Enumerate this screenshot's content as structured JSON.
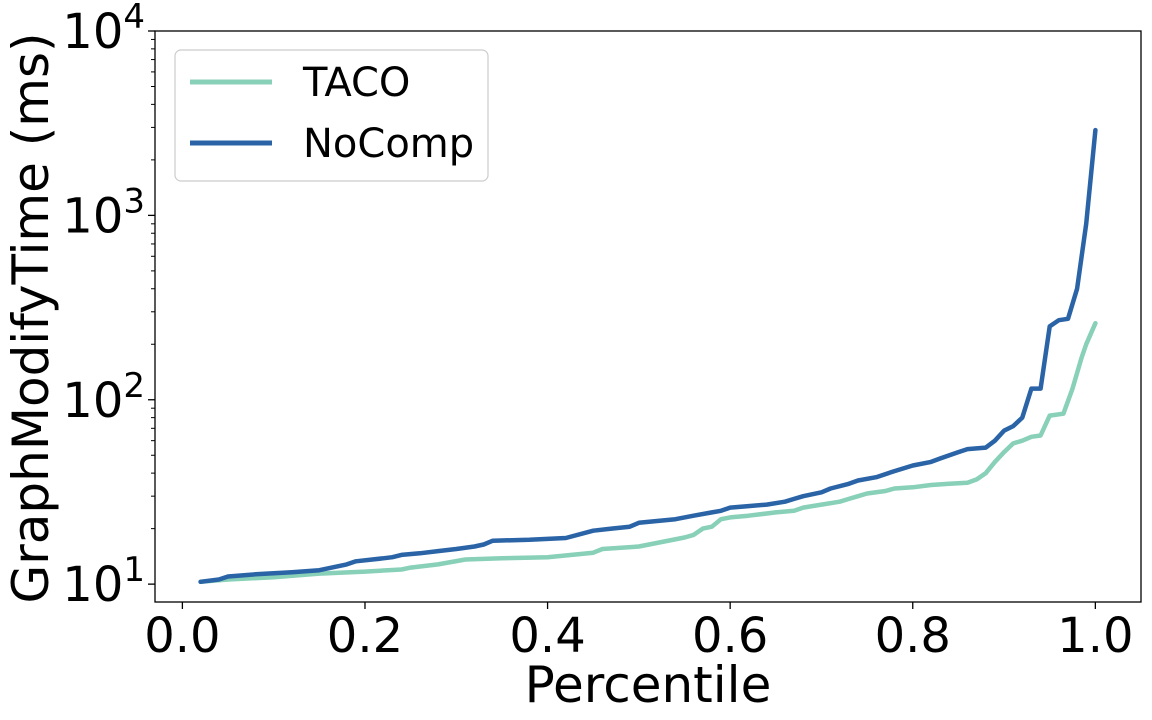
{
  "chart_data": {
    "type": "line",
    "xlabel": "Percentile",
    "ylabel": "GraphModifyTime (ms)",
    "xlim": [
      -0.03,
      1.05
    ],
    "ylim": [
      8.0,
      10000
    ],
    "yscale": "log",
    "grid": false,
    "legend_position": "top-left",
    "x_ticks": [
      {
        "value": 0.0,
        "label": "0.0"
      },
      {
        "value": 0.2,
        "label": "0.2"
      },
      {
        "value": 0.4,
        "label": "0.4"
      },
      {
        "value": 0.6,
        "label": "0.6"
      },
      {
        "value": 0.8,
        "label": "0.8"
      },
      {
        "value": 1.0,
        "label": "1.0"
      }
    ],
    "y_ticks": [
      {
        "value": 10,
        "base": "10",
        "exp": "1"
      },
      {
        "value": 100,
        "base": "10",
        "exp": "2"
      },
      {
        "value": 1000,
        "base": "10",
        "exp": "3"
      },
      {
        "value": 10000,
        "base": "10",
        "exp": "4"
      }
    ],
    "series": [
      {
        "name": "TACO",
        "color": "#88d0b8",
        "points": [
          [
            0.02,
            10.3
          ],
          [
            0.05,
            10.6
          ],
          [
            0.1,
            10.9
          ],
          [
            0.15,
            11.4
          ],
          [
            0.2,
            11.7
          ],
          [
            0.24,
            12.0
          ],
          [
            0.25,
            12.3
          ],
          [
            0.28,
            12.8
          ],
          [
            0.31,
            13.6
          ],
          [
            0.35,
            13.8
          ],
          [
            0.4,
            14.0
          ],
          [
            0.45,
            14.8
          ],
          [
            0.46,
            15.5
          ],
          [
            0.5,
            16.0
          ],
          [
            0.55,
            17.9
          ],
          [
            0.56,
            18.5
          ],
          [
            0.57,
            20.0
          ],
          [
            0.58,
            20.5
          ],
          [
            0.59,
            22.5
          ],
          [
            0.6,
            23.0
          ],
          [
            0.62,
            23.5
          ],
          [
            0.65,
            24.5
          ],
          [
            0.67,
            25.0
          ],
          [
            0.68,
            26.0
          ],
          [
            0.7,
            27.0
          ],
          [
            0.72,
            28.0
          ],
          [
            0.73,
            29.0
          ],
          [
            0.74,
            30.0
          ],
          [
            0.75,
            31.0
          ],
          [
            0.77,
            32.0
          ],
          [
            0.78,
            33.0
          ],
          [
            0.8,
            33.5
          ],
          [
            0.82,
            34.5
          ],
          [
            0.84,
            35.0
          ],
          [
            0.86,
            35.5
          ],
          [
            0.87,
            37.0
          ],
          [
            0.88,
            40.0
          ],
          [
            0.89,
            46.0
          ],
          [
            0.9,
            52.0
          ],
          [
            0.91,
            58.0
          ],
          [
            0.92,
            60.0
          ],
          [
            0.93,
            63.0
          ],
          [
            0.94,
            64.0
          ],
          [
            0.95,
            82.0
          ],
          [
            0.965,
            84.0
          ],
          [
            0.975,
            115.0
          ],
          [
            0.985,
            170.0
          ],
          [
            0.99,
            200.0
          ],
          [
            1.0,
            260.0
          ]
        ]
      },
      {
        "name": "NoComp",
        "color": "#2a64a6",
        "points": [
          [
            0.02,
            10.3
          ],
          [
            0.04,
            10.6
          ],
          [
            0.05,
            11.0
          ],
          [
            0.08,
            11.3
          ],
          [
            0.12,
            11.6
          ],
          [
            0.15,
            11.9
          ],
          [
            0.18,
            12.8
          ],
          [
            0.19,
            13.3
          ],
          [
            0.22,
            13.8
          ],
          [
            0.23,
            14.0
          ],
          [
            0.24,
            14.4
          ],
          [
            0.26,
            14.7
          ],
          [
            0.28,
            15.1
          ],
          [
            0.3,
            15.5
          ],
          [
            0.32,
            16.0
          ],
          [
            0.33,
            16.4
          ],
          [
            0.34,
            17.2
          ],
          [
            0.38,
            17.4
          ],
          [
            0.42,
            17.8
          ],
          [
            0.45,
            19.5
          ],
          [
            0.47,
            20.0
          ],
          [
            0.49,
            20.5
          ],
          [
            0.5,
            21.5
          ],
          [
            0.52,
            22.0
          ],
          [
            0.54,
            22.5
          ],
          [
            0.56,
            23.5
          ],
          [
            0.58,
            24.5
          ],
          [
            0.59,
            25.0
          ],
          [
            0.6,
            26.0
          ],
          [
            0.62,
            26.5
          ],
          [
            0.64,
            27.0
          ],
          [
            0.66,
            28.0
          ],
          [
            0.67,
            29.0
          ],
          [
            0.68,
            30.0
          ],
          [
            0.7,
            31.5
          ],
          [
            0.71,
            33.0
          ],
          [
            0.73,
            35.0
          ],
          [
            0.74,
            36.5
          ],
          [
            0.76,
            38.0
          ],
          [
            0.78,
            41.0
          ],
          [
            0.8,
            44.0
          ],
          [
            0.82,
            46.0
          ],
          [
            0.83,
            48.0
          ],
          [
            0.85,
            52.0
          ],
          [
            0.86,
            54.0
          ],
          [
            0.88,
            55.0
          ],
          [
            0.89,
            60.0
          ],
          [
            0.9,
            68.0
          ],
          [
            0.91,
            72.0
          ],
          [
            0.92,
            80.0
          ],
          [
            0.93,
            115.0
          ],
          [
            0.94,
            115.0
          ],
          [
            0.95,
            250.0
          ],
          [
            0.96,
            270.0
          ],
          [
            0.97,
            275.0
          ],
          [
            0.98,
            400.0
          ],
          [
            0.99,
            900.0
          ],
          [
            1.0,
            2900.0
          ]
        ]
      }
    ]
  }
}
